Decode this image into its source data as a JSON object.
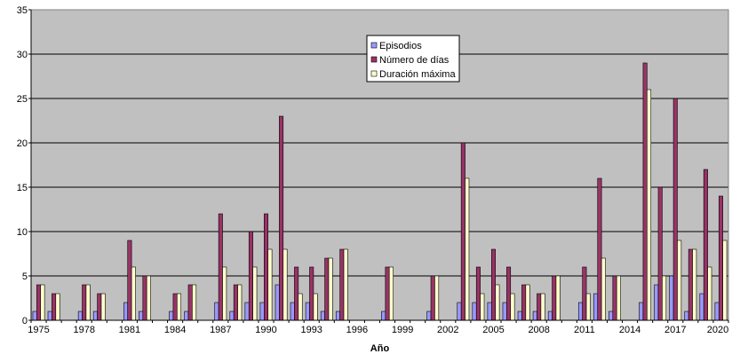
{
  "chart_data": {
    "type": "bar",
    "title": "",
    "xlabel": "Año",
    "ylabel": "",
    "ylim": [
      0,
      35
    ],
    "yticks": [
      0,
      5,
      10,
      15,
      20,
      25,
      30,
      35
    ],
    "xtick_labels": [
      "1975",
      "1978",
      "1981",
      "1984",
      "1987",
      "1990",
      "1993",
      "1996",
      "1999",
      "2002",
      "2005",
      "2008",
      "2011",
      "2014",
      "2017",
      "2020"
    ],
    "categories": [
      "1975",
      "1976",
      "1977",
      "1978",
      "1979",
      "1980",
      "1981",
      "1982",
      "1983",
      "1984",
      "1985",
      "1986",
      "1987",
      "1988",
      "1989",
      "1990",
      "1991",
      "1992",
      "1993",
      "1994",
      "1995",
      "1996",
      "1997",
      "1998",
      "1999",
      "2000",
      "2001",
      "2002",
      "2003",
      "2004",
      "2005",
      "2006",
      "2007",
      "2008",
      "2009",
      "2010",
      "2011",
      "2012",
      "2013",
      "2014",
      "2015",
      "2016",
      "2017",
      "2018",
      "2019",
      "2020"
    ],
    "series": [
      {
        "name": "Episodios",
        "color": "#9999ff",
        "values": [
          1,
          1,
          0,
          1,
          1,
          0,
          2,
          1,
          0,
          1,
          1,
          0,
          2,
          1,
          2,
          2,
          4,
          2,
          2,
          1,
          1,
          0,
          0,
          1,
          0,
          0,
          1,
          0,
          2,
          2,
          2,
          2,
          1,
          1,
          1,
          0,
          2,
          3,
          1,
          0,
          2,
          4,
          5,
          1,
          3,
          2
        ]
      },
      {
        "name": "Número de días",
        "color": "#993366",
        "values": [
          4,
          3,
          0,
          4,
          3,
          0,
          9,
          5,
          0,
          3,
          4,
          0,
          12,
          4,
          10,
          12,
          23,
          6,
          6,
          7,
          8,
          0,
          0,
          6,
          0,
          0,
          5,
          0,
          20,
          6,
          8,
          6,
          4,
          3,
          5,
          0,
          6,
          16,
          5,
          0,
          29,
          15,
          25,
          8,
          17,
          14
        ]
      },
      {
        "name": "Duración máxima",
        "color": "#ffffcc",
        "values": [
          4,
          3,
          0,
          4,
          3,
          0,
          6,
          5,
          0,
          3,
          4,
          0,
          6,
          4,
          6,
          8,
          8,
          3,
          3,
          7,
          8,
          0,
          0,
          6,
          0,
          0,
          5,
          0,
          16,
          3,
          4,
          3,
          4,
          3,
          5,
          0,
          3,
          7,
          5,
          0,
          26,
          5,
          9,
          8,
          6,
          9
        ]
      }
    ],
    "grid": true,
    "legend_position": "top-center",
    "background": "#c0c0c0"
  }
}
